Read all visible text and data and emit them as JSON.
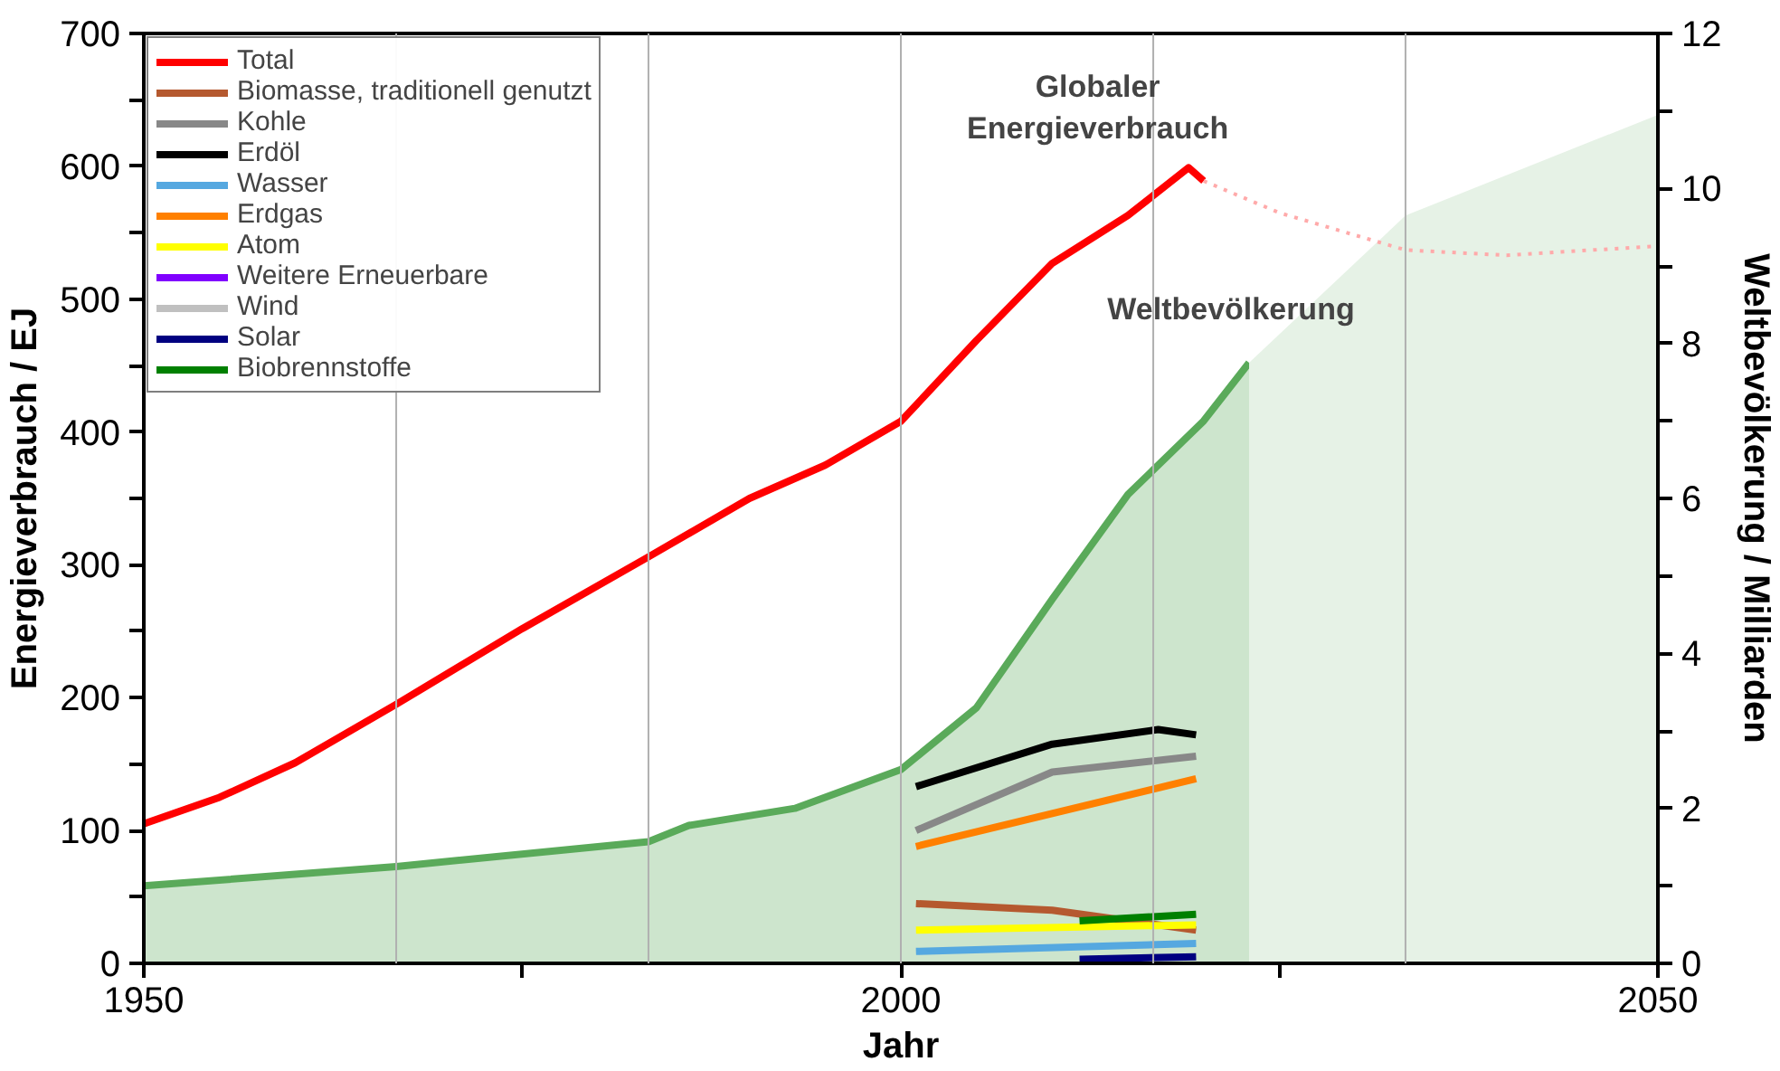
{
  "chart_data": {
    "type": "line",
    "xlabel": "Jahr",
    "ylabel": "Energieverbrauch / EJ",
    "y2label": "Weltbevölkerung / Milliarden",
    "xlim": [
      1950,
      2050
    ],
    "xticks": [
      1950,
      {
        "value": 1975,
        "label": null
      },
      2000,
      {
        "value": 2025,
        "label": null
      },
      2050
    ],
    "ylim": [
      0,
      700
    ],
    "yticks": [
      0,
      {
        "value": 50,
        "label": null
      },
      100,
      {
        "value": 150,
        "label": null
      },
      200,
      {
        "value": 250,
        "label": null
      },
      300,
      {
        "value": 350,
        "label": null
      },
      400,
      {
        "value": 450,
        "label": null
      },
      500,
      {
        "value": 550,
        "label": null
      },
      600,
      {
        "value": 650,
        "label": null
      },
      700
    ],
    "y2lim": [
      0,
      12
    ],
    "y2ticks": [
      0,
      {
        "value": 1,
        "label": null
      },
      2,
      {
        "value": 3,
        "label": null
      },
      4,
      {
        "value": 5,
        "label": null
      },
      6,
      {
        "value": 7,
        "label": null
      },
      8,
      {
        "value": 9,
        "label": null
      },
      10,
      {
        "value": 11,
        "label": null
      },
      12
    ],
    "grid": false,
    "legend": "top left",
    "ref_lines": [
      {
        "axis": "x",
        "value": 1966.67,
        "color": "#b0b0b0"
      },
      {
        "axis": "x",
        "value": 1983.33,
        "color": "#b0b0b0"
      },
      {
        "axis": "x",
        "value": 2000,
        "color": "#b0b0b0"
      },
      {
        "axis": "x",
        "value": 2016.67,
        "color": "#b0b0b0"
      },
      {
        "axis": "x",
        "value": 2033.33,
        "color": "#b0b0b0"
      }
    ],
    "annotations": [
      "Globaler\nEnergieverbrauch"
    ],
    "series": [
      {
        "type": "area",
        "axis": "y2",
        "name": "Weltbevölkerung",
        "color": "#5aaa5a",
        "x": [
          1950,
          1966.67,
          1983.33,
          1986,
          1993,
          2000,
          2005,
          2010,
          2015,
          2020,
          2023
        ],
        "values": [
          1.0,
          1.25,
          1.57,
          1.78,
          2.0,
          2.5,
          3.3,
          4.7,
          6.05,
          7.0,
          7.75
        ]
      },
      {
        "type": "area",
        "axis": "y2",
        "color": "#e6f2e6",
        "x": [
          2023,
          2033.33,
          2050
        ],
        "values": [
          7.75,
          9.65,
          10.95
        ]
      },
      {
        "name": "Total",
        "color": "#ff0000",
        "x": [
          1950,
          1955,
          1960,
          1966.67,
          1975,
          1983.33,
          1990,
          1995,
          2000,
          2005,
          2010,
          2015,
          2019,
          2020
        ],
        "values": [
          105,
          125,
          151,
          195,
          252,
          306,
          350,
          375,
          408,
          469,
          527,
          563,
          599,
          589
        ]
      },
      {
        "color": "#ffaaaa",
        "line_style": "dotted",
        "x": [
          2020,
          2025,
          2033.33,
          2040,
          2050
        ],
        "values": [
          589,
          565,
          537,
          533,
          540
        ]
      },
      {
        "name": "Biomasse, traditionell genutzt",
        "color": "#b5592f",
        "x": [
          2001,
          2010,
          2019.5
        ],
        "values": [
          45,
          40,
          25
        ]
      },
      {
        "name": "Kohle",
        "color": "#888888",
        "x": [
          2001,
          2010,
          2019.5
        ],
        "values": [
          100,
          144,
          156
        ]
      },
      {
        "name": "Erdöl",
        "color": "#000000",
        "x": [
          2001,
          2010,
          2017,
          2019.5
        ],
        "values": [
          133,
          165,
          176,
          172
        ]
      },
      {
        "name": "Wasser",
        "color": "#55a8e0",
        "x": [
          2001,
          2019.5
        ],
        "values": [
          9,
          15
        ]
      },
      {
        "name": "Erdgas",
        "color": "#ff8000",
        "x": [
          2001,
          2019.5
        ],
        "values": [
          88,
          139
        ]
      },
      {
        "name": "Atom",
        "color": "#ffff00",
        "x": [
          2001,
          2019.5
        ],
        "values": [
          25,
          29
        ]
      },
      {
        "name": "Weitere Erneuerbare",
        "color": "#8000ff"
      },
      {
        "name": "Wind",
        "color": "#c0c0c0"
      },
      {
        "name": "Solar",
        "color": "#000080",
        "x": [
          2011.8,
          2019.5
        ],
        "values": [
          3,
          5
        ]
      },
      {
        "name": "Biobrennstoffe",
        "color": "#008000",
        "x": [
          2011.8,
          2019.5
        ],
        "values": [
          32,
          37
        ]
      }
    ]
  }
}
